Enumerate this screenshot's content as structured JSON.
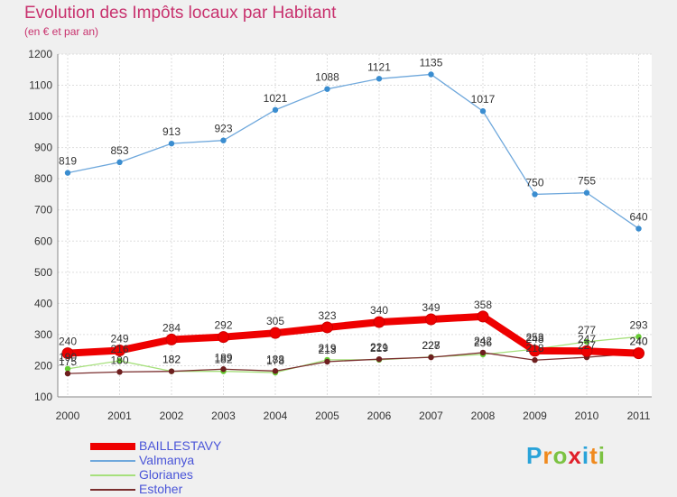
{
  "title": "Evolution des Impôts locaux par Habitant",
  "subtitle": "(en € et par an)",
  "logo": {
    "letters": [
      "P",
      "r",
      "o",
      "x",
      "i",
      "t",
      "i"
    ],
    "colors": [
      "#2aa3d9",
      "#f08a1e",
      "#7cc242",
      "#e0202a",
      "#2aa3d9",
      "#f08a1e",
      "#7cc242"
    ]
  },
  "chart_data": {
    "type": "line",
    "x": [
      "2000",
      "2001",
      "2002",
      "2003",
      "2004",
      "2005",
      "2006",
      "2007",
      "2008",
      "2009",
      "2010",
      "2011"
    ],
    "ylim": [
      100,
      1200
    ],
    "yticks": [
      100,
      200,
      300,
      400,
      500,
      600,
      700,
      800,
      900,
      1000,
      1100,
      1200
    ],
    "grid": true,
    "series": [
      {
        "name": "Valmanya",
        "color": "#6fa8dc",
        "marker": "#3a8dd0",
        "width": "thin",
        "values": [
          819,
          853,
          913,
          923,
          1021,
          1088,
          1121,
          1135,
          1017,
          750,
          755,
          640
        ]
      },
      {
        "name": "Glorianes",
        "color": "#a6e07c",
        "marker": "#66cc33",
        "width": "thin",
        "values": [
          190,
          216,
          182,
          182,
          178,
          219,
          219,
          228,
          236,
          253,
          277,
          293
        ]
      },
      {
        "name": "Estoher",
        "color": "#7a2e2e",
        "marker": "#6e1f1f",
        "width": "thin",
        "values": [
          175,
          180,
          182,
          189,
          183,
          213,
          221,
          227,
          242,
          218,
          227,
          240
        ]
      },
      {
        "name": "BAILLESTAVY",
        "color": "#ee0000",
        "marker": "#ee0000",
        "width": "thick",
        "values": [
          240,
          249,
          284,
          292,
          305,
          323,
          340,
          349,
          358,
          248,
          247,
          240
        ]
      }
    ],
    "legend_order": [
      "BAILLESTAVY",
      "Valmanya",
      "Glorianes",
      "Estoher"
    ],
    "data_label_series": [
      "Valmanya",
      "BAILLESTAVY",
      "Estoher",
      "Glorianes"
    ]
  }
}
